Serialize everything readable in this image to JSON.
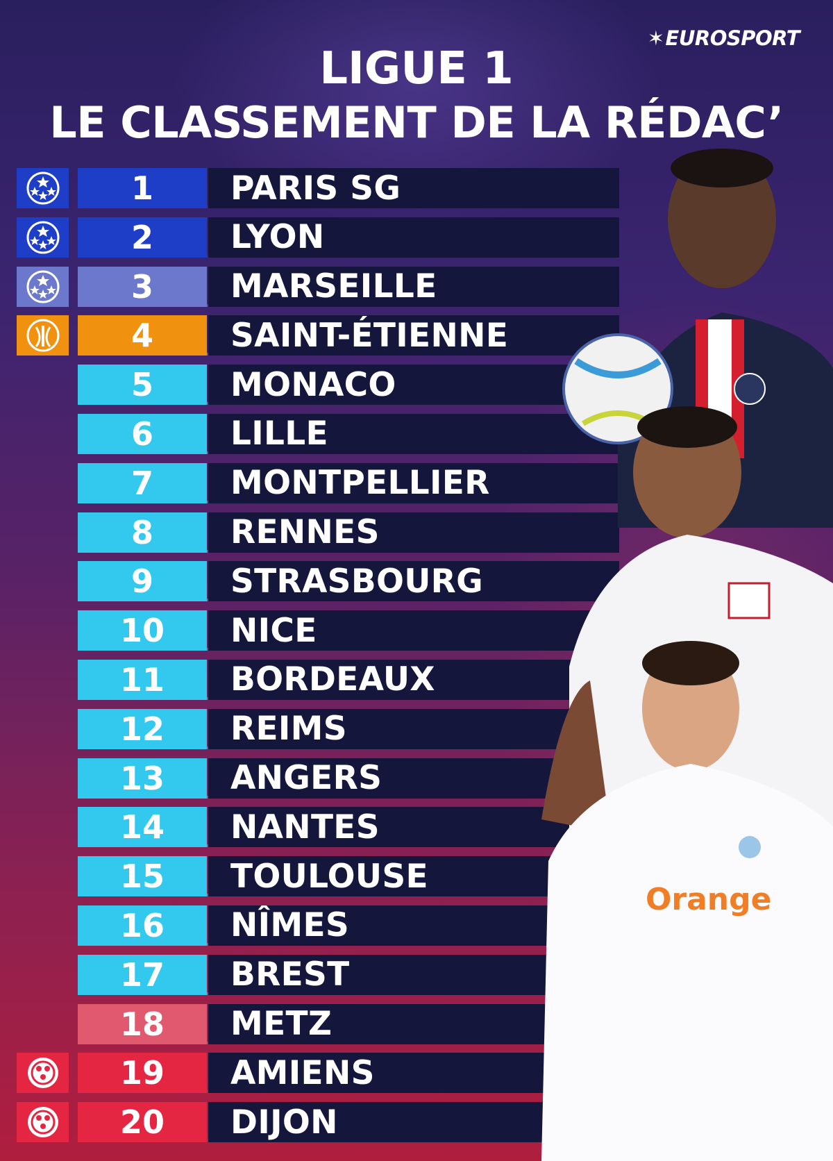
{
  "brand": {
    "name": "EUROSPORT"
  },
  "title": {
    "line1": "LIGUE 1",
    "line2": "LE CLASSEMENT DE LA RÉDAC’"
  },
  "colors": {
    "champions_league": "#1f3ec8",
    "champions_league_qualifier": "#6b78cc",
    "europa_league": "#f0920f",
    "midtable": "#33c8ee",
    "relegation_playoff": "#e0596e",
    "relegation": "#e52642",
    "name_bg": "#15163c"
  },
  "standings": [
    {
      "rank": "1",
      "team": "PARIS SG",
      "zone": "champions_league",
      "icon": "champions-league-icon"
    },
    {
      "rank": "2",
      "team": "LYON",
      "zone": "champions_league",
      "icon": "champions-league-icon"
    },
    {
      "rank": "3",
      "team": "MARSEILLE",
      "zone": "champions_league_qualifier",
      "icon": "champions-league-icon"
    },
    {
      "rank": "4",
      "team": "SAINT-ÉTIENNE",
      "zone": "europa_league",
      "icon": "europa-league-icon"
    },
    {
      "rank": "5",
      "team": "MONACO",
      "zone": "midtable",
      "icon": ""
    },
    {
      "rank": "6",
      "team": "LILLE",
      "zone": "midtable",
      "icon": ""
    },
    {
      "rank": "7",
      "team": "MONTPELLIER",
      "zone": "midtable",
      "icon": ""
    },
    {
      "rank": "8",
      "team": "RENNES",
      "zone": "midtable",
      "icon": ""
    },
    {
      "rank": "9",
      "team": "STRASBOURG",
      "zone": "midtable",
      "icon": ""
    },
    {
      "rank": "10",
      "team": "NICE",
      "zone": "midtable",
      "icon": ""
    },
    {
      "rank": "11",
      "team": "BORDEAUX",
      "zone": "midtable",
      "icon": ""
    },
    {
      "rank": "12",
      "team": "REIMS",
      "zone": "midtable",
      "icon": ""
    },
    {
      "rank": "13",
      "team": "ANGERS",
      "zone": "midtable",
      "icon": ""
    },
    {
      "rank": "14",
      "team": "NANTES",
      "zone": "midtable",
      "icon": ""
    },
    {
      "rank": "15",
      "team": "TOULOUSE",
      "zone": "midtable",
      "icon": ""
    },
    {
      "rank": "16",
      "team": "NÎMES",
      "zone": "midtable",
      "icon": ""
    },
    {
      "rank": "17",
      "team": "BREST",
      "zone": "midtable",
      "icon": ""
    },
    {
      "rank": "18",
      "team": "METZ",
      "zone": "relegation_playoff",
      "icon": ""
    },
    {
      "rank": "19",
      "team": "AMIENS",
      "zone": "relegation",
      "icon": "ligue-2-icon"
    },
    {
      "rank": "20",
      "team": "DIJON",
      "zone": "relegation",
      "icon": "ligue-2-icon"
    }
  ]
}
